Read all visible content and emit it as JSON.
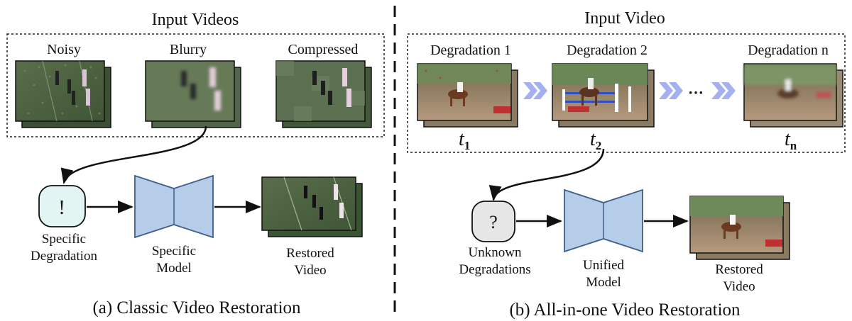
{
  "left_panel": {
    "box_title": "Input Videos",
    "inputs": [
      "Noisy",
      "Blurry",
      "Compressed"
    ],
    "indicator_symbol": "!",
    "indicator_label": [
      "Specific",
      "Degradation"
    ],
    "model_label": [
      "Specific",
      "Model"
    ],
    "output_label": [
      "Restored",
      "Video"
    ],
    "caption": "(a) Classic Video Restoration"
  },
  "right_panel": {
    "box_title": "Input Video",
    "frames": [
      "Degradation 1",
      "Degradation 2",
      "Degradation n"
    ],
    "time_labels": [
      {
        "var": "t",
        "sub": "1"
      },
      {
        "var": "t",
        "sub": "2"
      },
      {
        "var": "t",
        "sub": "n"
      }
    ],
    "ellipsis": "···",
    "indicator_symbol": "?",
    "indicator_label": [
      "Unknown",
      "Degradations"
    ],
    "model_label": [
      "Unified",
      "Model"
    ],
    "output_label": [
      "Restored",
      "Video"
    ],
    "caption": "(b) All-in-one Video Restoration"
  },
  "colors": {
    "model_fill": "#b6cde9",
    "model_stroke": "#3f5e8c",
    "chevron": "#a4b0f0",
    "indicator_left_fill": "#e3f5f3",
    "indicator_right_fill": "#e6e6e6",
    "field": "#4f6440",
    "track": "#a48a70"
  },
  "icons": {
    "chevron": "chevron-right-icon",
    "arrow": "arrow-right-icon"
  }
}
